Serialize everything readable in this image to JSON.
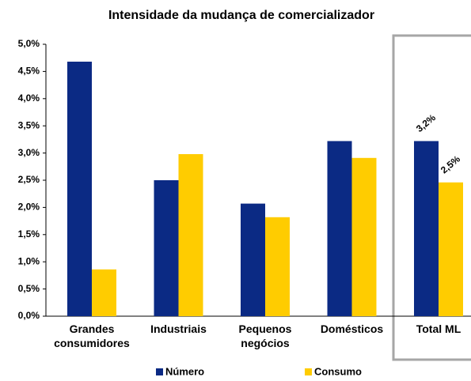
{
  "chart_data": {
    "type": "bar",
    "title": "Intensidade da mudança de comercializador",
    "categories": [
      "Grandes consumidores",
      "Industriais",
      "Pequenos negócios",
      "Domésticos",
      "Total ML"
    ],
    "series": [
      {
        "name": "Número",
        "color": "#0b2a84",
        "values": [
          4.68,
          2.5,
          2.07,
          3.22,
          3.22
        ],
        "value_labels": [
          null,
          null,
          null,
          null,
          "3,2%"
        ]
      },
      {
        "name": "Consumo",
        "color": "#ffcc00",
        "values": [
          0.86,
          2.98,
          1.82,
          2.91,
          2.46
        ],
        "value_labels": [
          null,
          null,
          null,
          null,
          "2,5%"
        ]
      }
    ],
    "ylim": [
      0,
      5
    ],
    "yticks": [
      {
        "value": 0,
        "label": "0,0%"
      },
      {
        "value": 0.5,
        "label": "0,5%"
      },
      {
        "value": 1,
        "label": "1,0%"
      },
      {
        "value": 1.5,
        "label": "1,5%"
      },
      {
        "value": 2,
        "label": "2,0%"
      },
      {
        "value": 2.5,
        "label": "2,5%"
      },
      {
        "value": 3,
        "label": "3,0%"
      },
      {
        "value": 3.5,
        "label": "3,5%"
      },
      {
        "value": 4,
        "label": "4,0%"
      },
      {
        "value": 4.5,
        "label": "4,5%"
      },
      {
        "value": 5,
        "label": "5,0%"
      }
    ],
    "legend": "bottom"
  }
}
